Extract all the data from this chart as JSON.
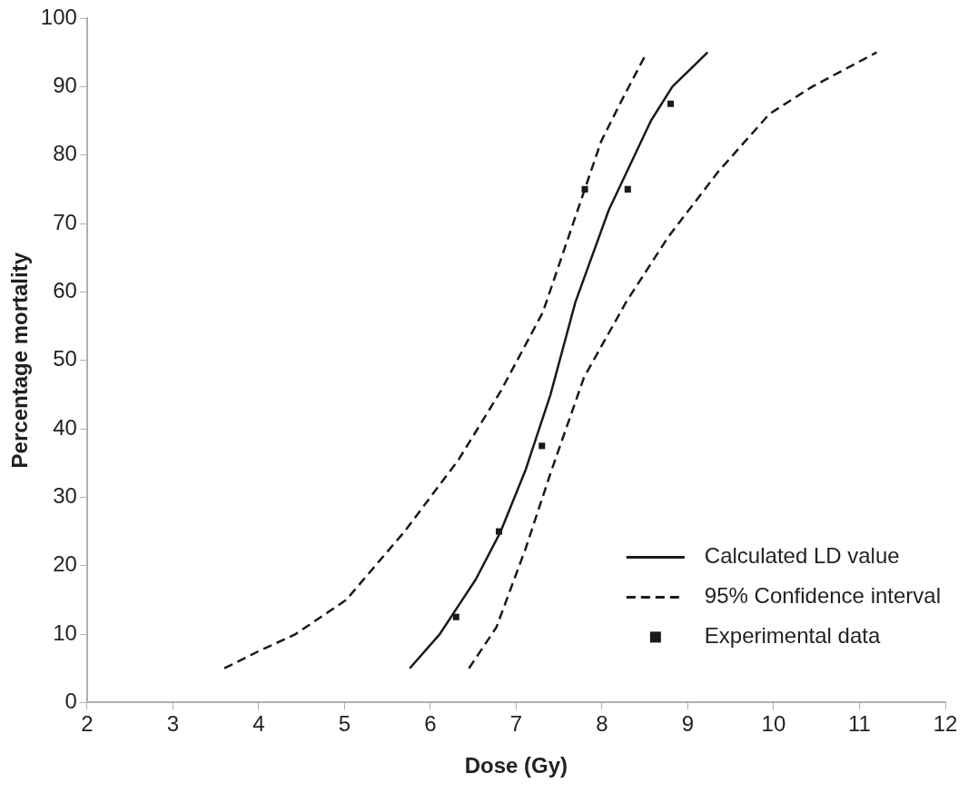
{
  "chart_data": {
    "type": "line",
    "xlabel": "Dose (Gy)",
    "ylabel": "Percentage mortality",
    "xlim": [
      2,
      12
    ],
    "xticks": [
      2,
      3,
      4,
      5,
      6,
      7,
      8,
      9,
      10,
      11,
      12
    ],
    "ylim": [
      0,
      100
    ],
    "yticks": [
      0,
      10,
      20,
      30,
      40,
      50,
      60,
      70,
      80,
      90,
      100
    ],
    "grid": false,
    "legend": "bottom right",
    "marker": "none",
    "series": [
      {
        "name": "Calculated LD value",
        "color": "#1a1a1a",
        "line_style": "solid",
        "x": [
          5.76,
          6.11,
          6.53,
          6.82,
          7.11,
          7.4,
          7.69,
          8.08,
          8.57,
          8.82,
          9.23
        ],
        "values": [
          5,
          10,
          18,
          25,
          34,
          45,
          58.5,
          72,
          85,
          90,
          95
        ]
      },
      {
        "name": "95% Confidence interval",
        "color": "#1a1a1a",
        "line_style": "dashed",
        "x": [
          3.6,
          4.0,
          4.43,
          5.02,
          5.7,
          6.33,
          6.82,
          7.31,
          7.65,
          7.99,
          8.23,
          8.51
        ],
        "values": [
          5,
          7.5,
          10,
          15,
          25,
          35.5,
          45.5,
          57,
          69.5,
          82,
          88,
          94.7
        ]
      },
      {
        "color": "#1a1a1a",
        "line_style": "dashed",
        "x": [
          6.45,
          6.77,
          7.11,
          7.4,
          7.79,
          8.28,
          8.77,
          9.35,
          9.95,
          10.45,
          11.2
        ],
        "values": [
          5,
          11,
          22.5,
          33.5,
          47.5,
          58.5,
          68,
          77.5,
          86,
          90,
          95
        ]
      },
      {
        "name": "Experimental data",
        "type": "scatter",
        "color": "#1a1a1a",
        "marker": "square",
        "x": [
          6.3,
          6.8,
          7.3,
          7.8,
          8.3,
          8.8
        ],
        "values": [
          12.5,
          25,
          37.5,
          75,
          75,
          87.5
        ]
      }
    ]
  }
}
